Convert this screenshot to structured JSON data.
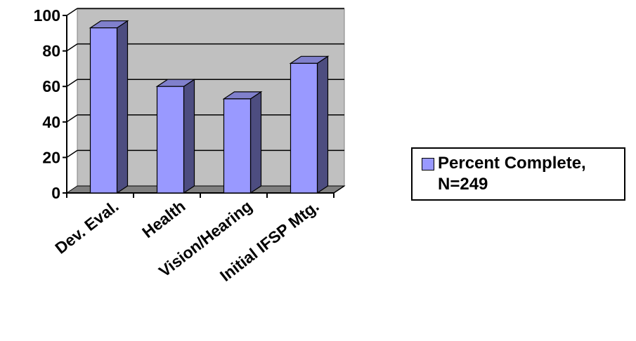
{
  "chart_data": {
    "type": "bar",
    "categories": [
      "Dev. Eval.",
      "Health",
      "Vision/Hearing",
      "Initial IFSP Mtg."
    ],
    "series": [
      {
        "name": "Percent Complete, N=249",
        "values": [
          93,
          60,
          53,
          73
        ]
      }
    ],
    "yticks": [
      "0",
      "20",
      "40",
      "60",
      "80",
      "100"
    ],
    "ylim": [
      0,
      100
    ],
    "grid": true,
    "legend_position": "right",
    "colors": {
      "bar_front": "#9999ff",
      "bar_side": "#4d4d80",
      "bar_top": "#8080cc",
      "plot_wall": "#c0c0c0",
      "plot_floor": "#808080"
    }
  }
}
